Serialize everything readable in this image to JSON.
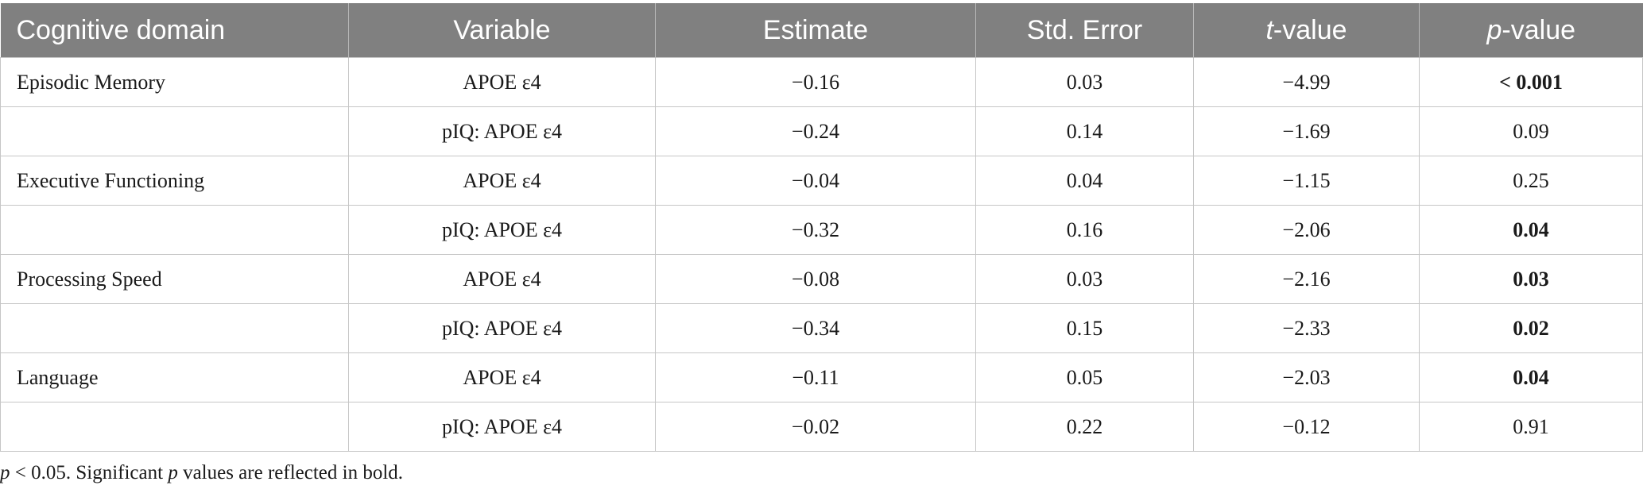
{
  "table": {
    "headers": {
      "domain": "Cognitive domain",
      "variable": "Variable",
      "estimate": "Estimate",
      "std_error": "Std. Error",
      "t_prefix": "t",
      "t_suffix": "-value",
      "p_prefix": "p",
      "p_suffix": "-value"
    },
    "rows": [
      {
        "domain": "Episodic Memory",
        "variable": "APOE ε4",
        "estimate": "−0.16",
        "std_error": "0.03",
        "t_value": "−4.99",
        "p_value": "< 0.001",
        "significant": true
      },
      {
        "domain": "",
        "variable": "pIQ: APOE ε4",
        "estimate": "−0.24",
        "std_error": "0.14",
        "t_value": "−1.69",
        "p_value": "0.09",
        "significant": false
      },
      {
        "domain": "Executive Functioning",
        "variable": "APOE ε4",
        "estimate": "−0.04",
        "std_error": "0.04",
        "t_value": "−1.15",
        "p_value": "0.25",
        "significant": false
      },
      {
        "domain": "",
        "variable": "pIQ: APOE ε4",
        "estimate": "−0.32",
        "std_error": "0.16",
        "t_value": "−2.06",
        "p_value": "0.04",
        "significant": true
      },
      {
        "domain": "Processing Speed",
        "variable": "APOE ε4",
        "estimate": "−0.08",
        "std_error": "0.03",
        "t_value": "−2.16",
        "p_value": "0.03",
        "significant": true
      },
      {
        "domain": "",
        "variable": "pIQ: APOE ε4",
        "estimate": "−0.34",
        "std_error": "0.15",
        "t_value": "−2.33",
        "p_value": "0.02",
        "significant": true
      },
      {
        "domain": "Language",
        "variable": "APOE ε4",
        "estimate": "−0.11",
        "std_error": "0.05",
        "t_value": "−2.03",
        "p_value": "0.04",
        "significant": true
      },
      {
        "domain": "",
        "variable": "pIQ: APOE ε4",
        "estimate": "−0.02",
        "std_error": "0.22",
        "t_value": "−0.12",
        "p_value": "0.91",
        "significant": false
      }
    ]
  },
  "footnote": {
    "p_symbol": "p",
    "threshold": " < 0.05. Significant ",
    "p_symbol_2": "p",
    "rest": " values are reflected in bold."
  },
  "colors": {
    "header_bg": "#808080",
    "header_text": "#ffffff",
    "grid": "#c6c6c6"
  }
}
